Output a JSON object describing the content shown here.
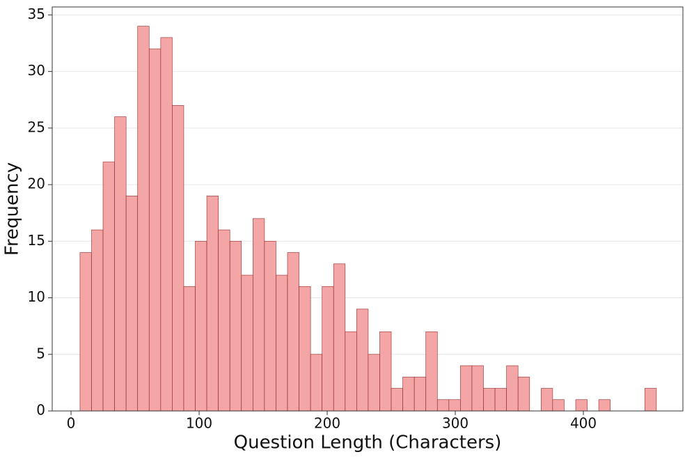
{
  "chart_data": {
    "type": "histogram",
    "xlabel": "Question Length (Characters)",
    "ylabel": "Frequency",
    "bins": [
      7,
      16,
      25,
      34,
      43,
      52,
      61,
      70,
      79,
      88,
      97,
      106,
      115,
      124,
      133,
      142,
      151,
      160,
      169,
      178,
      187,
      196,
      205,
      214,
      223,
      232,
      241,
      250,
      259,
      268,
      277,
      286,
      295,
      304,
      313,
      322,
      331,
      340,
      349,
      358,
      367,
      376,
      385,
      394,
      403,
      412,
      421,
      430,
      439,
      448,
      457
    ],
    "values": [
      14,
      16,
      22,
      26,
      19,
      34,
      32,
      33,
      27,
      11,
      15,
      19,
      16,
      15,
      12,
      17,
      15,
      12,
      14,
      11,
      5,
      11,
      13,
      7,
      9,
      5,
      7,
      2,
      3,
      3,
      7,
      1,
      1,
      4,
      4,
      2,
      2,
      4,
      3,
      0,
      2,
      1,
      0,
      1,
      0,
      1,
      0,
      0,
      0,
      2
    ],
    "color": "#f4a6a6",
    "edgecolor": "#8b1a1a",
    "xlim": [
      -14.7,
      477.7
    ],
    "xticks": [
      0,
      100,
      200,
      300,
      400
    ],
    "ylim": [
      0,
      35.7
    ],
    "yticks": [
      0,
      5,
      10,
      15,
      20,
      25,
      30,
      35
    ],
    "grid": true
  }
}
